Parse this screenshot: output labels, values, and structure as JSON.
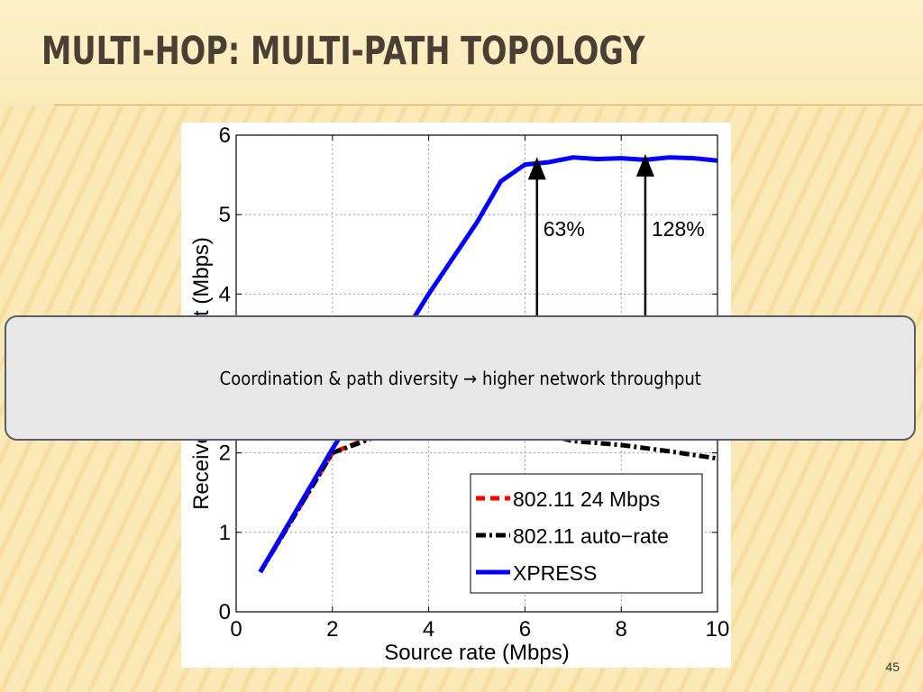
{
  "slide": {
    "title": "MULTI-HOP: MULTI-PATH TOPOLOGY",
    "callout_text": "Coordination & path diversity → higher network throughput",
    "page_number": "45"
  },
  "chart_data": {
    "type": "line",
    "xlabel": "Source rate (Mbps)",
    "ylabel": "Received throughput (Mbps)",
    "xlim": [
      0,
      10
    ],
    "ylim": [
      0,
      6
    ],
    "xticks": [
      0,
      2,
      4,
      6,
      8,
      10
    ],
    "yticks": [
      0,
      1,
      2,
      3,
      4,
      5,
      6
    ],
    "grid": true,
    "legend_position": "bottom-right",
    "series": [
      {
        "name": "802.11 24 Mbps",
        "color": "#ff0000",
        "style": "dashed",
        "x": [
          0.5,
          2,
          4,
          5,
          6
        ],
        "y": [
          0.5,
          2,
          2.5,
          2.6,
          2.6
        ]
      },
      {
        "name": "802.11 auto−rate",
        "color": "#000000",
        "style": "dashdot",
        "x": [
          0.5,
          2,
          4,
          6,
          7,
          8,
          9,
          10
        ],
        "y": [
          0.5,
          2,
          2.45,
          2.3,
          2.15,
          2.1,
          2.02,
          1.93
        ]
      },
      {
        "name": "XPRESS",
        "color": "#0000ff",
        "style": "solid",
        "x": [
          0.5,
          2,
          4,
          5,
          5.5,
          6,
          6.5,
          7,
          7.5,
          8,
          8.5,
          9,
          9.5,
          10
        ],
        "y": [
          0.5,
          2.05,
          4.0,
          4.9,
          5.42,
          5.63,
          5.66,
          5.72,
          5.7,
          5.71,
          5.69,
          5.72,
          5.71,
          5.68
        ]
      }
    ],
    "annotations": [
      {
        "label": "63%",
        "x": 6.25,
        "y_from": 3.6,
        "y_to": 5.65
      },
      {
        "label": "128%",
        "x": 8.5,
        "y_from": 3.6,
        "y_to": 5.69
      }
    ]
  }
}
